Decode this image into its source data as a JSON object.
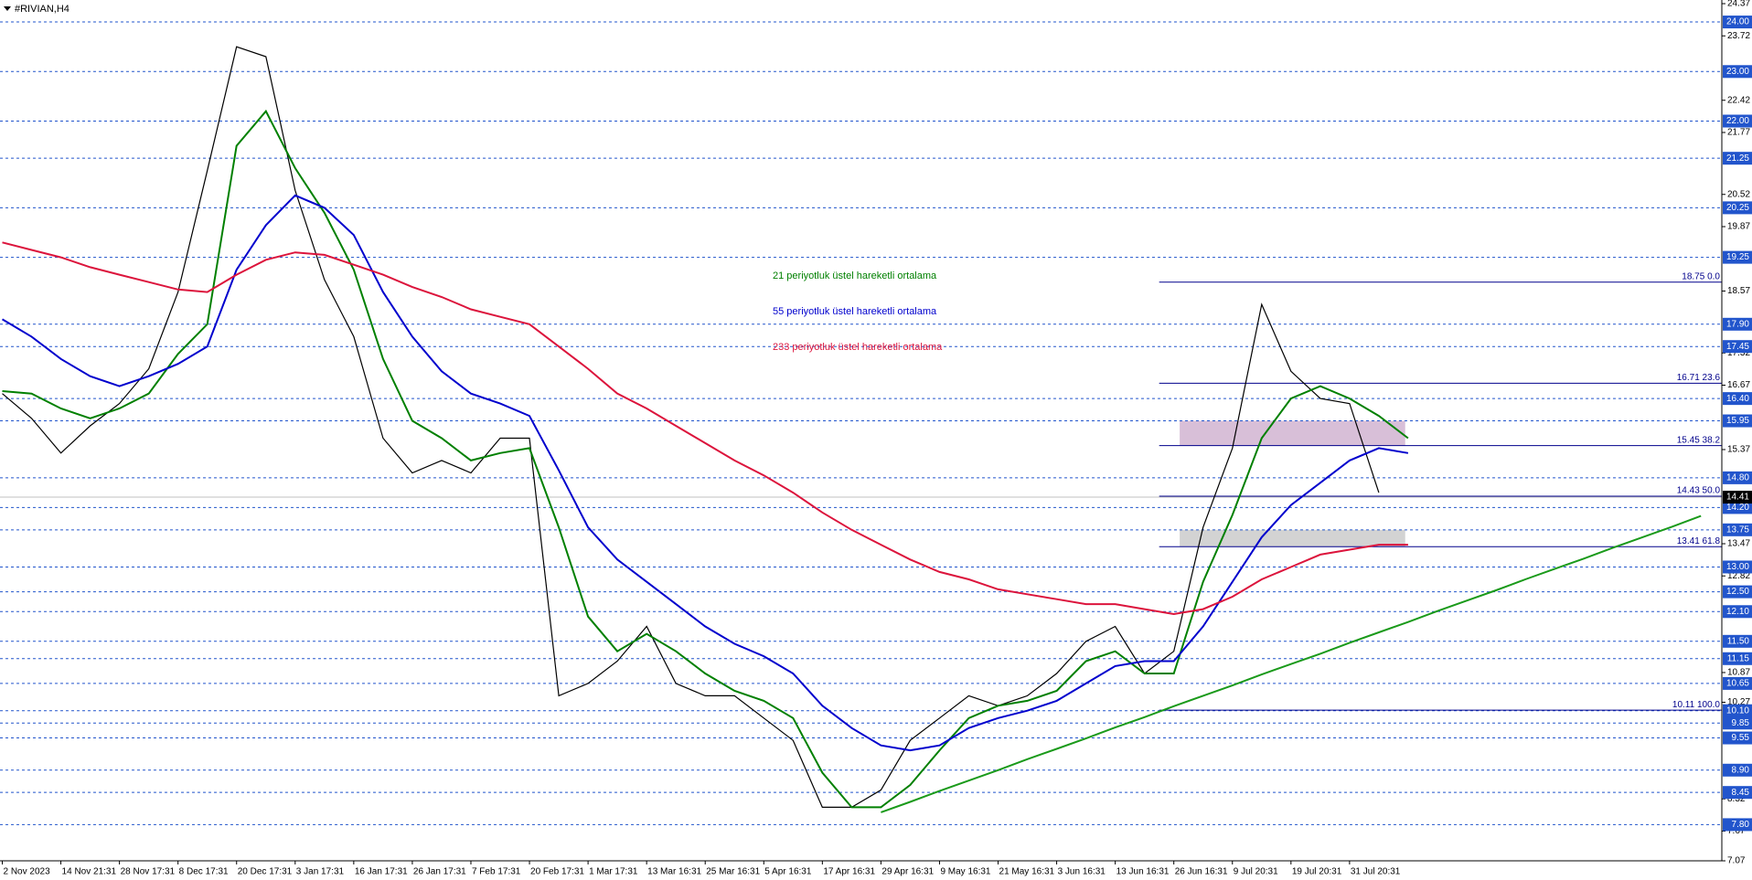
{
  "chart_data": {
    "type": "line",
    "title": "#RIVIAN,H4",
    "categories": [
      "2 Nov 2023",
      null,
      "14 Nov 21:31",
      null,
      "28 Nov 17:31",
      null,
      "8 Dec 17:31",
      null,
      "20 Dec 17:31",
      null,
      "3 Jan 17:31",
      null,
      "16 Jan 17:31",
      null,
      "26 Jan 17:31",
      null,
      "7 Feb 17:31",
      null,
      "20 Feb 17:31",
      null,
      "1 Mar 17:31",
      null,
      "13 Mar 16:31",
      null,
      "25 Mar 16:31",
      null,
      "5 Apr 16:31",
      null,
      "17 Apr 16:31",
      null,
      "29 Apr 16:31",
      null,
      "9 May 16:31",
      null,
      "21 May 16:31",
      null,
      "3 Jun 16:31",
      null,
      "13 Jun 16:31",
      null,
      "26 Jun 16:31",
      null,
      "9 Jul 20:31",
      null,
      "19 Jul 20:31",
      null,
      "31 Jul 20:31",
      null,
      null,
      null,
      null,
      null,
      null,
      null,
      null,
      null,
      null,
      null,
      null
    ],
    "series": [
      {
        "color": "#000000",
        "values": [
          16.5,
          16.0,
          15.3,
          15.85,
          16.3,
          17.0,
          18.55,
          21.0,
          23.5,
          23.3,
          20.6,
          18.8,
          17.65,
          15.6,
          14.9,
          15.15,
          14.9,
          15.6,
          15.6,
          10.4,
          10.65,
          11.1,
          11.8,
          10.65,
          10.4,
          10.4,
          9.95,
          9.5,
          8.15,
          8.15,
          8.5,
          9.5,
          9.95,
          10.4,
          10.2,
          10.4,
          10.85,
          11.5,
          11.8,
          10.85,
          11.3,
          13.8,
          15.4,
          18.3,
          16.95,
          16.4,
          16.3,
          14.5,
          null,
          null,
          null,
          null,
          null,
          null,
          null,
          null,
          null,
          null,
          null
        ]
      },
      {
        "color": "#008000",
        "values": [
          16.55,
          16.5,
          16.2,
          16.0,
          16.2,
          16.5,
          17.3,
          17.9,
          21.5,
          22.2,
          21.05,
          20.15,
          19.0,
          17.2,
          15.95,
          15.6,
          15.15,
          15.3,
          15.4,
          13.8,
          12.0,
          11.3,
          11.65,
          11.3,
          10.85,
          10.5,
          10.3,
          9.95,
          8.85,
          8.15,
          8.15,
          8.6,
          9.3,
          9.95,
          10.2,
          10.3,
          10.5,
          11.1,
          11.3,
          10.85,
          10.85,
          12.7,
          14.05,
          15.6,
          16.4,
          16.65,
          16.4,
          16.05,
          15.6,
          null,
          null,
          null,
          null,
          null,
          null,
          null,
          null,
          null,
          null
        ]
      },
      {
        "color": "#0000cd",
        "values": [
          18.0,
          17.65,
          17.2,
          16.85,
          16.65,
          16.85,
          17.1,
          17.45,
          19.0,
          19.9,
          20.5,
          20.25,
          19.7,
          18.55,
          17.65,
          16.95,
          16.5,
          16.3,
          16.05,
          14.95,
          13.8,
          13.15,
          12.7,
          12.25,
          11.8,
          11.45,
          11.2,
          10.85,
          10.2,
          9.75,
          9.4,
          9.3,
          9.4,
          9.75,
          9.95,
          10.1,
          10.3,
          10.65,
          11.0,
          11.1,
          11.1,
          11.8,
          12.7,
          13.6,
          14.25,
          14.7,
          15.15,
          15.4,
          15.3,
          null,
          null,
          null,
          null,
          null,
          null,
          null,
          null,
          null,
          null
        ]
      },
      {
        "color": "#dc143c",
        "values": [
          19.55,
          19.4,
          19.25,
          19.05,
          18.9,
          18.75,
          18.6,
          18.55,
          18.9,
          19.2,
          19.35,
          19.3,
          19.1,
          18.9,
          18.65,
          18.45,
          18.2,
          18.05,
          17.9,
          17.45,
          17.0,
          16.5,
          16.2,
          15.85,
          15.5,
          15.15,
          14.85,
          14.5,
          14.1,
          13.75,
          13.45,
          13.15,
          12.9,
          12.75,
          12.55,
          12.45,
          12.35,
          12.25,
          12.25,
          12.15,
          12.05,
          12.15,
          12.4,
          12.75,
          13.0,
          13.25,
          13.35,
          13.45,
          13.45,
          null,
          null,
          null,
          null,
          null,
          null,
          null,
          null,
          null,
          null
        ]
      },
      {
        "color": "#1a9a1a",
        "values": [
          null,
          null,
          null,
          null,
          null,
          null,
          null,
          null,
          null,
          null,
          null,
          null,
          null,
          null,
          null,
          null,
          null,
          null,
          null,
          null,
          null,
          null,
          null,
          null,
          null,
          null,
          null,
          null,
          null,
          null,
          8.05,
          8.26,
          8.48,
          8.69,
          8.9,
          9.12,
          9.33,
          9.54,
          9.76,
          9.97,
          10.19,
          10.4,
          10.61,
          10.83,
          11.04,
          11.25,
          11.47,
          11.68,
          11.89,
          12.11,
          12.32,
          12.53,
          12.75,
          12.96,
          13.17,
          13.39,
          13.6,
          13.81,
          14.03
        ]
      }
    ],
    "ylim": [
      7.07,
      24.37
    ],
    "yticks": [
      24.37,
      23.72,
      22.42,
      21.77,
      20.52,
      19.87,
      18.57,
      17.32,
      16.67,
      15.37,
      13.47,
      12.82,
      10.87,
      10.27,
      8.32,
      7.67,
      7.07
    ],
    "levels": [
      {
        "value": 24,
        "label": "24.00"
      },
      {
        "value": 23,
        "label": "23.00"
      },
      {
        "value": 22,
        "label": "22.00"
      },
      {
        "value": 21.25,
        "label": "21.25"
      },
      {
        "value": 20.25,
        "label": "20.25"
      },
      {
        "value": 19.25,
        "label": "19.25"
      },
      {
        "value": 17.9,
        "label": "17.90"
      },
      {
        "value": 17.45,
        "label": "17.45"
      },
      {
        "value": 16.4,
        "label": "16.40"
      },
      {
        "value": 15.95,
        "label": "15.95"
      },
      {
        "value": 14.8,
        "label": "14.80"
      },
      {
        "value": 14.2,
        "label": "14.20"
      },
      {
        "value": 13.75,
        "label": "13.75"
      },
      {
        "value": 13,
        "label": "13.00"
      },
      {
        "value": 12.5,
        "label": "12.50"
      },
      {
        "value": 12.1,
        "label": "12.10"
      },
      {
        "value": 11.5,
        "label": "11.50"
      },
      {
        "value": 11.15,
        "label": "11.15"
      },
      {
        "value": 10.65,
        "label": "10.65"
      },
      {
        "value": 10.1,
        "label": "10.10"
      },
      {
        "value": 9.85,
        "label": "9.85"
      },
      {
        "value": 9.55,
        "label": "9.55"
      },
      {
        "value": 8.9,
        "label": "8.90"
      },
      {
        "value": 8.45,
        "label": "8.45"
      },
      {
        "value": 7.8,
        "label": "7.80"
      }
    ],
    "level_color": "#2255cc",
    "fib_levels": [
      {
        "value": 18.75,
        "label": "18.75 0.0"
      },
      {
        "value": 16.71,
        "label": "16.71 23.6"
      },
      {
        "value": 15.45,
        "label": "15.45 38.2"
      },
      {
        "value": 14.43,
        "label": "14.43 50.0"
      },
      {
        "value": 13.41,
        "label": "13.41 61.8"
      },
      {
        "value": 10.11,
        "label": "10.11 100.0"
      }
    ],
    "fib_color": "#00008b",
    "zones": [
      {
        "ymin": 15.45,
        "ymax": 15.95,
        "color": "#d8bfd8"
      },
      {
        "ymin": 13.41,
        "ymax": 13.75,
        "color": "#d3d3d3"
      }
    ],
    "current_price": 14.41,
    "annotations": [
      {
        "text": "21 periyotluk üstel hareketli ortalama",
        "color": "#008000"
      },
      {
        "text": "55 periyotluk üstel hareketli ortalama",
        "color": "#0000cd"
      },
      {
        "text": "233 periyotluk üstel hareketli ortalama",
        "color": "#dc143c"
      }
    ]
  }
}
